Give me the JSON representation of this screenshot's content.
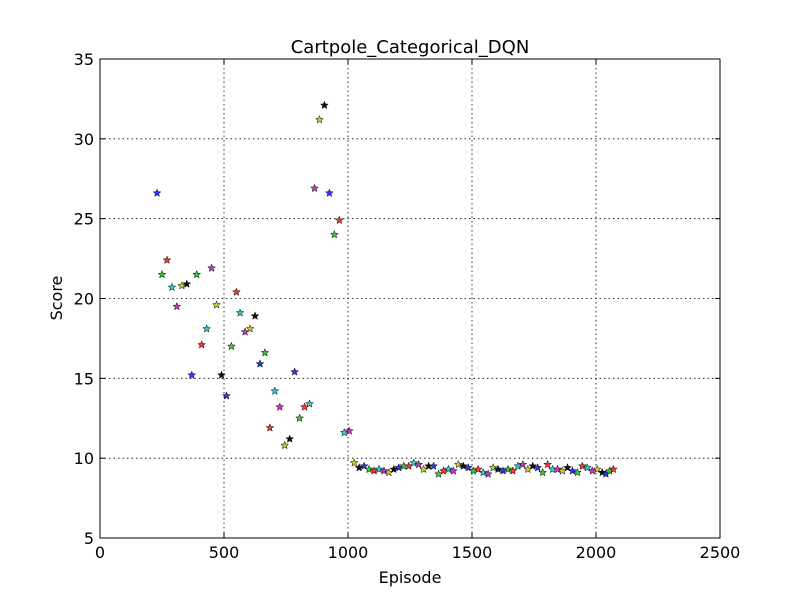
{
  "chart_data": {
    "type": "scatter",
    "title": "Cartpole_Categorical_DQN",
    "xlabel": "Episode",
    "ylabel": "Score",
    "xlim": [
      0,
      2500
    ],
    "ylim": [
      5,
      35
    ],
    "xticks": [
      0,
      500,
      1000,
      1500,
      2000,
      2500
    ],
    "yticks": [
      5,
      10,
      15,
      20,
      25,
      30,
      35
    ],
    "grid": true,
    "marker": "star",
    "points": [
      {
        "x": 230,
        "y": 26.6,
        "color": "#3333ff"
      },
      {
        "x": 250,
        "y": 21.5,
        "color": "#33cc33"
      },
      {
        "x": 270,
        "y": 22.4,
        "color": "#ff3333"
      },
      {
        "x": 290,
        "y": 20.7,
        "color": "#33cccc"
      },
      {
        "x": 310,
        "y": 19.5,
        "color": "#cc33cc"
      },
      {
        "x": 330,
        "y": 20.8,
        "color": "#cccc33"
      },
      {
        "x": 350,
        "y": 20.9,
        "color": "#111111"
      },
      {
        "x": 370,
        "y": 15.2,
        "color": "#3333ff"
      },
      {
        "x": 390,
        "y": 21.5,
        "color": "#33cc33"
      },
      {
        "x": 410,
        "y": 17.1,
        "color": "#ff3333"
      },
      {
        "x": 430,
        "y": 18.1,
        "color": "#33cccc"
      },
      {
        "x": 450,
        "y": 21.9,
        "color": "#cc33cc"
      },
      {
        "x": 470,
        "y": 19.6,
        "color": "#cccc33"
      },
      {
        "x": 490,
        "y": 15.2,
        "color": "#111111"
      },
      {
        "x": 510,
        "y": 13.9,
        "color": "#3333ff"
      },
      {
        "x": 530,
        "y": 17.0,
        "color": "#33cc33"
      },
      {
        "x": 550,
        "y": 20.4,
        "color": "#ff3333"
      },
      {
        "x": 565,
        "y": 19.1,
        "color": "#33cccc"
      },
      {
        "x": 585,
        "y": 17.9,
        "color": "#cc33cc"
      },
      {
        "x": 605,
        "y": 18.1,
        "color": "#cccc33"
      },
      {
        "x": 625,
        "y": 18.9,
        "color": "#111111"
      },
      {
        "x": 645,
        "y": 15.9,
        "color": "#3333ff"
      },
      {
        "x": 665,
        "y": 16.6,
        "color": "#33cc33"
      },
      {
        "x": 685,
        "y": 11.9,
        "color": "#ff3333"
      },
      {
        "x": 705,
        "y": 14.2,
        "color": "#33cccc"
      },
      {
        "x": 725,
        "y": 13.2,
        "color": "#cc33cc"
      },
      {
        "x": 745,
        "y": 10.8,
        "color": "#cccc33"
      },
      {
        "x": 765,
        "y": 11.2,
        "color": "#111111"
      },
      {
        "x": 785,
        "y": 15.4,
        "color": "#3333ff"
      },
      {
        "x": 805,
        "y": 12.5,
        "color": "#33cc33"
      },
      {
        "x": 825,
        "y": 13.2,
        "color": "#ff3333"
      },
      {
        "x": 845,
        "y": 13.4,
        "color": "#33cccc"
      },
      {
        "x": 865,
        "y": 26.9,
        "color": "#cc33cc"
      },
      {
        "x": 885,
        "y": 31.2,
        "color": "#cccc33"
      },
      {
        "x": 905,
        "y": 32.1,
        "color": "#111111"
      },
      {
        "x": 925,
        "y": 26.6,
        "color": "#3333ff"
      },
      {
        "x": 945,
        "y": 24.0,
        "color": "#33cc33"
      },
      {
        "x": 965,
        "y": 24.9,
        "color": "#ff3333"
      },
      {
        "x": 985,
        "y": 11.6,
        "color": "#33cccc"
      },
      {
        "x": 1005,
        "y": 11.7,
        "color": "#cc33cc"
      },
      {
        "x": 1025,
        "y": 9.7,
        "color": "#cccc33"
      },
      {
        "x": 1045,
        "y": 9.4,
        "color": "#111111"
      },
      {
        "x": 1065,
        "y": 9.5,
        "color": "#3333ff"
      },
      {
        "x": 1085,
        "y": 9.3,
        "color": "#33cc33"
      },
      {
        "x": 1105,
        "y": 9.2,
        "color": "#ff3333"
      },
      {
        "x": 1125,
        "y": 9.3,
        "color": "#33cccc"
      },
      {
        "x": 1145,
        "y": 9.2,
        "color": "#cc33cc"
      },
      {
        "x": 1165,
        "y": 9.1,
        "color": "#cccc33"
      },
      {
        "x": 1185,
        "y": 9.3,
        "color": "#111111"
      },
      {
        "x": 1205,
        "y": 9.4,
        "color": "#3333ff"
      },
      {
        "x": 1225,
        "y": 9.5,
        "color": "#33cc33"
      },
      {
        "x": 1245,
        "y": 9.5,
        "color": "#ff3333"
      },
      {
        "x": 1265,
        "y": 9.7,
        "color": "#33cccc"
      },
      {
        "x": 1285,
        "y": 9.6,
        "color": "#cc33cc"
      },
      {
        "x": 1305,
        "y": 9.3,
        "color": "#cccc33"
      },
      {
        "x": 1325,
        "y": 9.5,
        "color": "#111111"
      },
      {
        "x": 1345,
        "y": 9.5,
        "color": "#3333ff"
      },
      {
        "x": 1365,
        "y": 9.0,
        "color": "#33cc33"
      },
      {
        "x": 1385,
        "y": 9.2,
        "color": "#ff3333"
      },
      {
        "x": 1405,
        "y": 9.3,
        "color": "#33cccc"
      },
      {
        "x": 1425,
        "y": 9.2,
        "color": "#cc33cc"
      },
      {
        "x": 1445,
        "y": 9.6,
        "color": "#cccc33"
      },
      {
        "x": 1465,
        "y": 9.5,
        "color": "#111111"
      },
      {
        "x": 1485,
        "y": 9.4,
        "color": "#3333ff"
      },
      {
        "x": 1505,
        "y": 9.2,
        "color": "#33cc33"
      },
      {
        "x": 1525,
        "y": 9.3,
        "color": "#ff3333"
      },
      {
        "x": 1545,
        "y": 9.1,
        "color": "#33cccc"
      },
      {
        "x": 1565,
        "y": 9.0,
        "color": "#cc33cc"
      },
      {
        "x": 1585,
        "y": 9.4,
        "color": "#cccc33"
      },
      {
        "x": 1605,
        "y": 9.3,
        "color": "#111111"
      },
      {
        "x": 1625,
        "y": 9.2,
        "color": "#3333ff"
      },
      {
        "x": 1645,
        "y": 9.3,
        "color": "#33cc33"
      },
      {
        "x": 1665,
        "y": 9.2,
        "color": "#ff3333"
      },
      {
        "x": 1685,
        "y": 9.5,
        "color": "#33cccc"
      },
      {
        "x": 1705,
        "y": 9.6,
        "color": "#cc33cc"
      },
      {
        "x": 1725,
        "y": 9.3,
        "color": "#cccc33"
      },
      {
        "x": 1745,
        "y": 9.5,
        "color": "#111111"
      },
      {
        "x": 1765,
        "y": 9.4,
        "color": "#3333ff"
      },
      {
        "x": 1785,
        "y": 9.1,
        "color": "#33cc33"
      },
      {
        "x": 1805,
        "y": 9.6,
        "color": "#ff3333"
      },
      {
        "x": 1825,
        "y": 9.3,
        "color": "#33cccc"
      },
      {
        "x": 1845,
        "y": 9.3,
        "color": "#cc33cc"
      },
      {
        "x": 1865,
        "y": 9.2,
        "color": "#cccc33"
      },
      {
        "x": 1885,
        "y": 9.4,
        "color": "#111111"
      },
      {
        "x": 1905,
        "y": 9.2,
        "color": "#3333ff"
      },
      {
        "x": 1925,
        "y": 9.1,
        "color": "#33cc33"
      },
      {
        "x": 1945,
        "y": 9.5,
        "color": "#ff3333"
      },
      {
        "x": 1965,
        "y": 9.4,
        "color": "#33cccc"
      },
      {
        "x": 1985,
        "y": 9.2,
        "color": "#cc33cc"
      },
      {
        "x": 2005,
        "y": 9.3,
        "color": "#cccc33"
      },
      {
        "x": 2025,
        "y": 9.1,
        "color": "#111111"
      },
      {
        "x": 2040,
        "y": 9.0,
        "color": "#3333ff"
      },
      {
        "x": 2055,
        "y": 9.2,
        "color": "#33cc33"
      },
      {
        "x": 2070,
        "y": 9.3,
        "color": "#ff3333"
      }
    ]
  }
}
